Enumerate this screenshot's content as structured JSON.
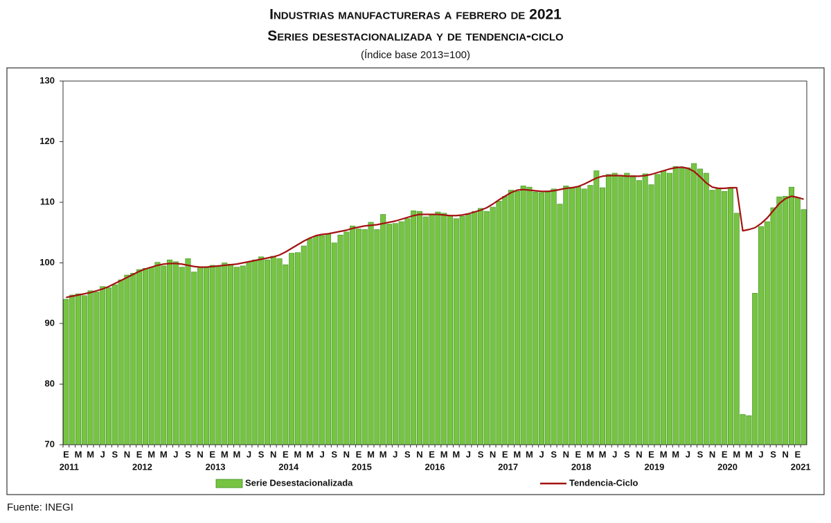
{
  "chart_data": {
    "type": "bar_line",
    "title": "Industrias manufactureras a febrero de 2021",
    "subtitle": "Series desestacionalizada y de tendencia-ciclo",
    "note": "(Índice base 2013=100)",
    "source": "Fuente: INEGI",
    "categories": [
      "E",
      null,
      "M",
      null,
      "M",
      null,
      "J",
      null,
      "S",
      null,
      "N",
      null,
      "E",
      null,
      "M",
      null,
      "M",
      null,
      "J",
      null,
      "S",
      null,
      "N",
      null,
      "E",
      null,
      "M",
      null,
      "M",
      null,
      "J",
      null,
      "S",
      null,
      "N",
      null,
      "E",
      null,
      "M",
      null,
      "M",
      null,
      "J",
      null,
      "S",
      null,
      "N",
      null,
      "E",
      null,
      "M",
      null,
      "M",
      null,
      "J",
      null,
      "S",
      null,
      "N",
      null,
      "E",
      null,
      "M",
      null,
      "M",
      null,
      "J",
      null,
      "S",
      null,
      "N",
      null,
      "E",
      null,
      "M",
      null,
      "M",
      null,
      "J",
      null,
      "S",
      null,
      "N",
      null,
      "E",
      null,
      "M",
      null,
      "M",
      null,
      "J",
      null,
      "S",
      null,
      "N",
      null,
      "E",
      null,
      "M",
      null,
      "M",
      null,
      "J",
      null,
      "S",
      null,
      "N",
      null,
      "E",
      null,
      "M",
      null,
      "M",
      null,
      "J",
      null,
      "S",
      null,
      "N",
      null,
      "E",
      null
    ],
    "years": [
      "2011",
      "2012",
      "2013",
      "2014",
      "2015",
      "2016",
      "2017",
      "2018",
      "2019",
      "2020",
      "2021"
    ],
    "series": [
      {
        "name": "Serie Desestacionalizada",
        "kind": "bar",
        "color": "#76c442",
        "values": [
          94.0,
          94.7,
          94.9,
          94.6,
          95.4,
          95.2,
          96.1,
          95.9,
          96.4,
          97.2,
          98.0,
          98.3,
          98.9,
          99.1,
          99.3,
          100.1,
          99.5,
          100.5,
          100.2,
          99.3,
          100.7,
          98.5,
          99.3,
          99.4,
          99.6,
          99.5,
          100.0,
          99.8,
          99.3,
          99.5,
          100.2,
          100.5,
          101.0,
          100.5,
          101.1,
          100.7,
          99.7,
          101.6,
          101.7,
          102.8,
          104.0,
          104.4,
          104.5,
          104.8,
          103.3,
          104.6,
          105.1,
          106.1,
          105.6,
          105.5,
          106.7,
          105.5,
          108.0,
          106.4,
          106.5,
          106.8,
          107.3,
          108.6,
          108.5,
          107.6,
          108.0,
          108.4,
          108.2,
          107.8,
          107.3,
          107.7,
          108.0,
          108.5,
          109.0,
          108.5,
          109.2,
          110.2,
          111.0,
          112.0,
          111.8,
          112.7,
          112.5,
          111.7,
          111.6,
          111.7,
          112.2,
          109.7,
          112.7,
          112.5,
          112.6,
          112.2,
          112.8,
          115.2,
          112.4,
          114.6,
          114.8,
          114.4,
          114.8,
          114.4,
          113.6,
          114.7,
          112.9,
          114.6,
          115.2,
          114.8,
          115.9,
          115.6,
          115.7,
          116.4,
          115.5,
          114.8,
          112.0,
          112.3,
          111.8,
          112.3,
          108.2,
          75.0,
          74.8,
          95.0,
          106.0,
          106.8,
          109.1,
          110.9,
          111.0,
          112.5,
          110.8,
          108.8
        ]
      },
      {
        "name": "Tendencia-Ciclo",
        "kind": "line",
        "color": "#a31212",
        "values": [
          94.3,
          94.5,
          94.7,
          94.9,
          95.1,
          95.4,
          95.7,
          96.1,
          96.6,
          97.1,
          97.6,
          98.1,
          98.6,
          99.0,
          99.3,
          99.6,
          99.8,
          99.9,
          99.9,
          99.8,
          99.6,
          99.4,
          99.3,
          99.3,
          99.4,
          99.5,
          99.6,
          99.7,
          99.8,
          100.0,
          100.2,
          100.4,
          100.6,
          100.8,
          101.0,
          101.3,
          101.8,
          102.4,
          103.0,
          103.6,
          104.1,
          104.5,
          104.7,
          104.8,
          105.0,
          105.2,
          105.4,
          105.7,
          105.9,
          106.1,
          106.2,
          106.3,
          106.5,
          106.7,
          106.9,
          107.2,
          107.5,
          107.8,
          108.0,
          108.0,
          108.0,
          108.0,
          107.9,
          107.8,
          107.8,
          107.9,
          108.1,
          108.4,
          108.7,
          109.1,
          109.7,
          110.4,
          111.0,
          111.6,
          112.0,
          112.1,
          112.0,
          111.9,
          111.8,
          111.8,
          111.9,
          112.1,
          112.3,
          112.4,
          112.6,
          113.0,
          113.5,
          114.0,
          114.3,
          114.4,
          114.4,
          114.4,
          114.3,
          114.3,
          114.3,
          114.4,
          114.6,
          114.9,
          115.2,
          115.5,
          115.7,
          115.8,
          115.6,
          115.1,
          114.2,
          113.2,
          112.5,
          112.3,
          112.3,
          112.4,
          112.4,
          105.3,
          105.5,
          105.8,
          106.5,
          107.4,
          108.6,
          109.8,
          110.6,
          111.0,
          110.8,
          110.5
        ]
      }
    ],
    "ylim": [
      70,
      130
    ],
    "yticks": [
      70,
      80,
      90,
      100,
      110,
      120,
      130
    ],
    "grid": false,
    "legend": "bottom"
  }
}
